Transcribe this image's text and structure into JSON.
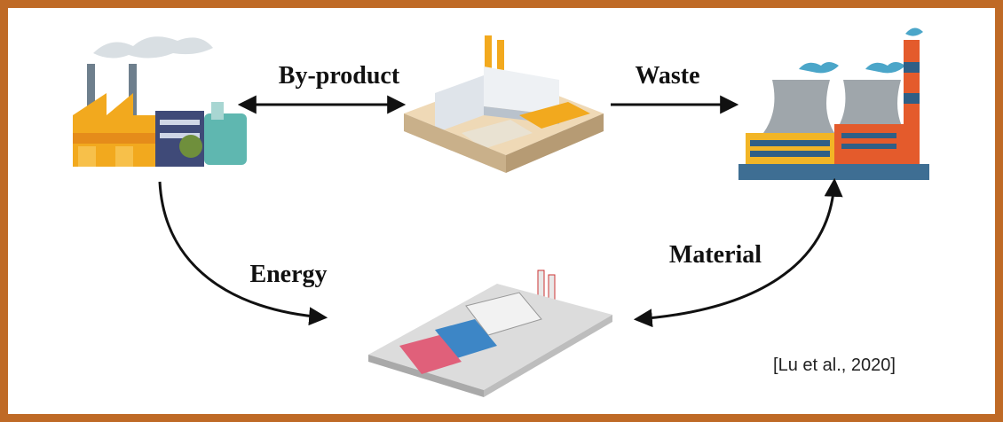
{
  "edges": [
    {
      "label": "By-product"
    },
    {
      "label": "Waste"
    },
    {
      "label": "Energy"
    },
    {
      "label": "Material"
    }
  ],
  "citation": "[Lu et al., 2020]"
}
